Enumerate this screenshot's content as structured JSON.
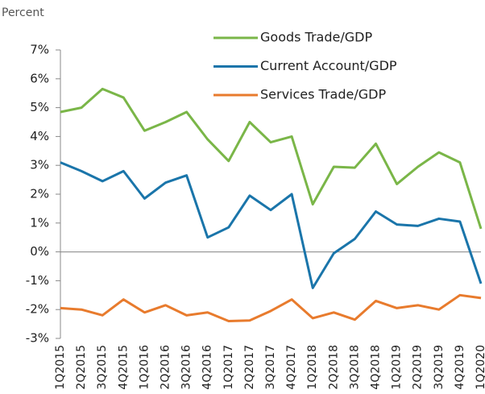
{
  "chart_data": {
    "type": "line",
    "y_label": "Percent",
    "categories": [
      "1Q2015",
      "2Q2015",
      "3Q2015",
      "4Q2015",
      "1Q2016",
      "2Q2016",
      "3Q2016",
      "4Q2016",
      "1Q2017",
      "2Q2017",
      "3Q2017",
      "4Q2017",
      "1Q2018",
      "2Q2018",
      "3Q2018",
      "4Q2018",
      "1Q2019",
      "2Q2019",
      "3Q2019",
      "4Q2019",
      "1Q2020"
    ],
    "series": [
      {
        "name": "Goods Trade/GDP",
        "color": "#7ab648",
        "values": [
          4.85,
          5.0,
          5.65,
          5.35,
          4.2,
          4.5,
          4.85,
          3.9,
          3.15,
          4.5,
          3.8,
          4.0,
          1.65,
          2.95,
          2.92,
          3.75,
          2.35,
          2.95,
          3.45,
          3.1,
          0.8
        ]
      },
      {
        "name": "Current Account/GDP",
        "color": "#1a75aa",
        "values": [
          3.1,
          2.8,
          2.45,
          2.8,
          1.85,
          2.4,
          2.65,
          0.5,
          0.85,
          1.95,
          1.45,
          2.0,
          -1.25,
          -0.05,
          0.45,
          1.4,
          0.95,
          0.9,
          1.15,
          1.05,
          -1.1
        ]
      },
      {
        "name": "Services Trade/GDP",
        "color": "#e87b2d",
        "values": [
          -1.95,
          -2.0,
          -2.2,
          -1.65,
          -2.1,
          -1.85,
          -2.2,
          -2.1,
          -2.4,
          -2.38,
          -2.05,
          -1.65,
          -2.3,
          -2.1,
          -2.35,
          -1.7,
          -1.95,
          -1.85,
          -2.0,
          -1.5,
          -1.6
        ]
      }
    ],
    "ylim": [
      -3,
      7
    ],
    "yticks": [
      {
        "value": -3,
        "label": "-3%"
      },
      {
        "value": -2,
        "label": "-2%"
      },
      {
        "value": -1,
        "label": "-1%"
      },
      {
        "value": 0,
        "label": "0%"
      },
      {
        "value": 1,
        "label": "1%"
      },
      {
        "value": 2,
        "label": "2%"
      },
      {
        "value": 3,
        "label": "3%"
      },
      {
        "value": 4,
        "label": "4%"
      },
      {
        "value": 5,
        "label": "5%"
      },
      {
        "value": 6,
        "label": "6%"
      },
      {
        "value": 7,
        "label": "7%"
      }
    ]
  }
}
